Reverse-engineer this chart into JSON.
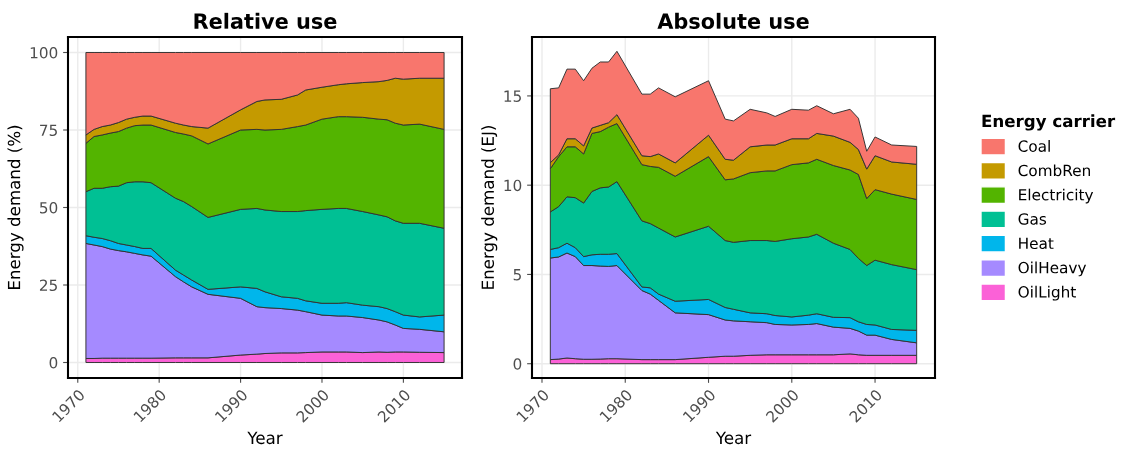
{
  "chart_data": [
    {
      "type": "area",
      "title": "Relative use",
      "xlabel": "Year",
      "ylabel": "Energy demand (%)",
      "stacked": true,
      "grid": true,
      "legend": false,
      "x": [
        1971,
        1972,
        1973,
        1974,
        1975,
        1976,
        1977,
        1978,
        1979,
        1982,
        1983,
        1984,
        1986,
        1990,
        1992,
        1993,
        1995,
        1997,
        1998,
        2000,
        2002,
        2003,
        2005,
        2007,
        2008,
        2009,
        2010,
        2012,
        2015
      ],
      "xlim": [
        1968.8,
        2017.2
      ],
      "xticks": [
        1970,
        1980,
        1990,
        2000,
        2010
      ],
      "ylim": [
        -5,
        105
      ],
      "yticks": [
        0,
        25,
        50,
        75,
        100
      ],
      "series": [
        {
          "color": "#fb61d7",
          "values": [
            1.3,
            1.3,
            1.4,
            1.4,
            1.4,
            1.4,
            1.4,
            1.4,
            1.4,
            1.5,
            1.5,
            1.5,
            1.5,
            2.4,
            2.7,
            2.9,
            3.1,
            3.1,
            3.2,
            3.4,
            3.4,
            3.4,
            3.2,
            3.4,
            3.3,
            3.4,
            3.4,
            3.3,
            3.2
          ]
        },
        {
          "color": "#a58aff",
          "values": [
            37.1,
            36.6,
            36.0,
            35.2,
            34.7,
            34.3,
            33.8,
            33.3,
            32.9,
            26.2,
            24.5,
            22.9,
            20.5,
            18.3,
            15.3,
            14.8,
            14.3,
            13.8,
            13.2,
            11.9,
            11.6,
            11.6,
            11.3,
            10.3,
            9.8,
            8.7,
            7.6,
            7.4,
            6.7
          ]
        },
        {
          "color": "#00b6eb",
          "values": [
            2.5,
            2.5,
            2.6,
            2.7,
            2.3,
            2.2,
            2.2,
            2.1,
            2.5,
            2.1,
            2.2,
            2.2,
            1.6,
            3.7,
            5.9,
            5.1,
            3.8,
            3.8,
            3.5,
            3.8,
            4.1,
            4.3,
            4.0,
            4.3,
            4.3,
            4.3,
            4.3,
            4.0,
            5.4
          ]
        },
        {
          "color": "#00c094",
          "values": [
            14.2,
            15.8,
            16.2,
            17.4,
            18.5,
            20.1,
            20.9,
            21.5,
            21.2,
            23.2,
            23.7,
            23.7,
            23.2,
            25.0,
            25.8,
            26.4,
            27.5,
            28.0,
            29.1,
            30.3,
            30.6,
            30.4,
            30.2,
            29.6,
            29.6,
            29.3,
            29.6,
            30.2,
            28.0
          ]
        },
        {
          "color": "#53b400",
          "values": [
            15.6,
            16.7,
            17.2,
            17.3,
            17.6,
            17.6,
            18.1,
            18.3,
            18.6,
            21.2,
            21.8,
            22.8,
            23.7,
            25.6,
            25.5,
            25.8,
            26.5,
            27.4,
            27.6,
            29.1,
            29.6,
            29.6,
            30.4,
            30.9,
            31.3,
            31.5,
            31.7,
            32.0,
            31.9
          ]
        },
        {
          "color": "#c49a00",
          "values": [
            2.7,
            2.3,
            2.7,
            2.6,
            2.9,
            2.9,
            2.7,
            2.9,
            2.9,
            3.0,
            2.9,
            3.0,
            5.1,
            6.5,
            9.0,
            9.7,
            9.7,
            10.2,
            11.3,
            10.3,
            10.3,
            10.6,
            11.2,
            12.1,
            12.7,
            14.5,
            14.8,
            14.8,
            16.5
          ]
        },
        {
          "color": "#f8766d",
          "values": [
            26.6,
            24.8,
            23.9,
            23.4,
            22.6,
            21.5,
            20.9,
            20.5,
            20.5,
            22.8,
            23.4,
            23.9,
            24.4,
            18.5,
            15.8,
            15.3,
            15.1,
            13.7,
            12.1,
            11.2,
            10.4,
            10.1,
            9.7,
            9.4,
            9.0,
            8.3,
            8.6,
            8.3,
            8.3
          ]
        }
      ]
    },
    {
      "type": "area",
      "title": "Absolute use",
      "xlabel": "Year",
      "ylabel": "Energy demand (EJ)",
      "stacked": true,
      "grid": true,
      "legend": "right",
      "legend_title": "Energy carrier",
      "x": [
        1971,
        1972,
        1973,
        1974,
        1975,
        1976,
        1977,
        1978,
        1979,
        1982,
        1983,
        1984,
        1986,
        1990,
        1992,
        1993,
        1995,
        1997,
        1998,
        2000,
        2002,
        2003,
        2005,
        2007,
        2008,
        2009,
        2010,
        2012,
        2015
      ],
      "xlim": [
        1968.8,
        2017.2
      ],
      "xticks": [
        1970,
        1980,
        1990,
        2000,
        2010
      ],
      "ylim": [
        -0.8,
        18.3
      ],
      "yticks": [
        0,
        5,
        10,
        15
      ],
      "series": [
        {
          "name": "OilLight",
          "color": "#fb61d7",
          "values": [
            0.23,
            0.26,
            0.32,
            0.28,
            0.25,
            0.25,
            0.26,
            0.28,
            0.28,
            0.23,
            0.23,
            0.23,
            0.23,
            0.36,
            0.42,
            0.42,
            0.47,
            0.5,
            0.5,
            0.5,
            0.5,
            0.5,
            0.5,
            0.55,
            0.5,
            0.47,
            0.47,
            0.47,
            0.47
          ]
        },
        {
          "name": "OilHeavy",
          "color": "#a58aff",
          "values": [
            5.69,
            5.72,
            5.88,
            5.72,
            5.25,
            5.25,
            5.21,
            5.17,
            5.22,
            3.87,
            3.67,
            3.32,
            2.62,
            2.39,
            2.03,
            1.98,
            1.88,
            1.8,
            1.7,
            1.67,
            1.7,
            1.75,
            1.55,
            1.43,
            1.33,
            1.13,
            1.13,
            0.89,
            0.7
          ]
        },
        {
          "name": "Heat",
          "color": "#00b6eb",
          "values": [
            0.48,
            0.52,
            0.55,
            0.5,
            0.5,
            0.6,
            0.66,
            0.68,
            0.67,
            0.2,
            0.35,
            0.35,
            0.65,
            0.85,
            0.7,
            0.65,
            0.5,
            0.5,
            0.5,
            0.45,
            0.52,
            0.55,
            0.55,
            0.6,
            0.52,
            0.6,
            0.57,
            0.56,
            0.7
          ]
        },
        {
          "name": "Gas",
          "color": "#00c094",
          "values": [
            2.1,
            2.3,
            2.6,
            2.8,
            3.0,
            3.55,
            3.72,
            3.77,
            4.03,
            3.7,
            3.6,
            3.7,
            3.6,
            4.1,
            3.75,
            3.75,
            4.05,
            4.1,
            4.15,
            4.38,
            4.38,
            4.45,
            4.15,
            3.82,
            3.55,
            3.3,
            3.63,
            3.63,
            3.4
          ]
        },
        {
          "name": "Electricity",
          "color": "#53b400",
          "values": [
            2.42,
            2.8,
            2.8,
            2.85,
            2.75,
            3.25,
            3.15,
            3.35,
            3.25,
            3.15,
            3.2,
            3.4,
            3.4,
            3.9,
            3.4,
            3.55,
            3.8,
            3.9,
            3.95,
            4.15,
            4.15,
            4.2,
            4.35,
            4.45,
            4.7,
            3.75,
            3.95,
            3.95,
            3.93
          ]
        },
        {
          "name": "CombRen",
          "color": "#c49a00",
          "values": [
            0.34,
            0.1,
            0.45,
            0.45,
            0.45,
            0.3,
            0.35,
            0.25,
            0.5,
            0.5,
            0.55,
            0.75,
            0.75,
            1.2,
            1.15,
            1.05,
            1.45,
            1.45,
            1.45,
            1.45,
            1.35,
            1.45,
            1.65,
            1.55,
            1.4,
            1.65,
            1.9,
            1.8,
            1.97
          ]
        },
        {
          "name": "Coal",
          "color": "#f8766d",
          "values": [
            4.14,
            3.75,
            3.9,
            3.9,
            3.65,
            3.35,
            3.55,
            3.4,
            3.55,
            3.45,
            3.5,
            3.7,
            3.7,
            3.05,
            2.25,
            2.2,
            2.1,
            1.8,
            1.6,
            1.65,
            1.6,
            1.55,
            1.25,
            1.85,
            1.75,
            1.0,
            1.05,
            0.95,
            1.0
          ]
        }
      ]
    }
  ]
}
